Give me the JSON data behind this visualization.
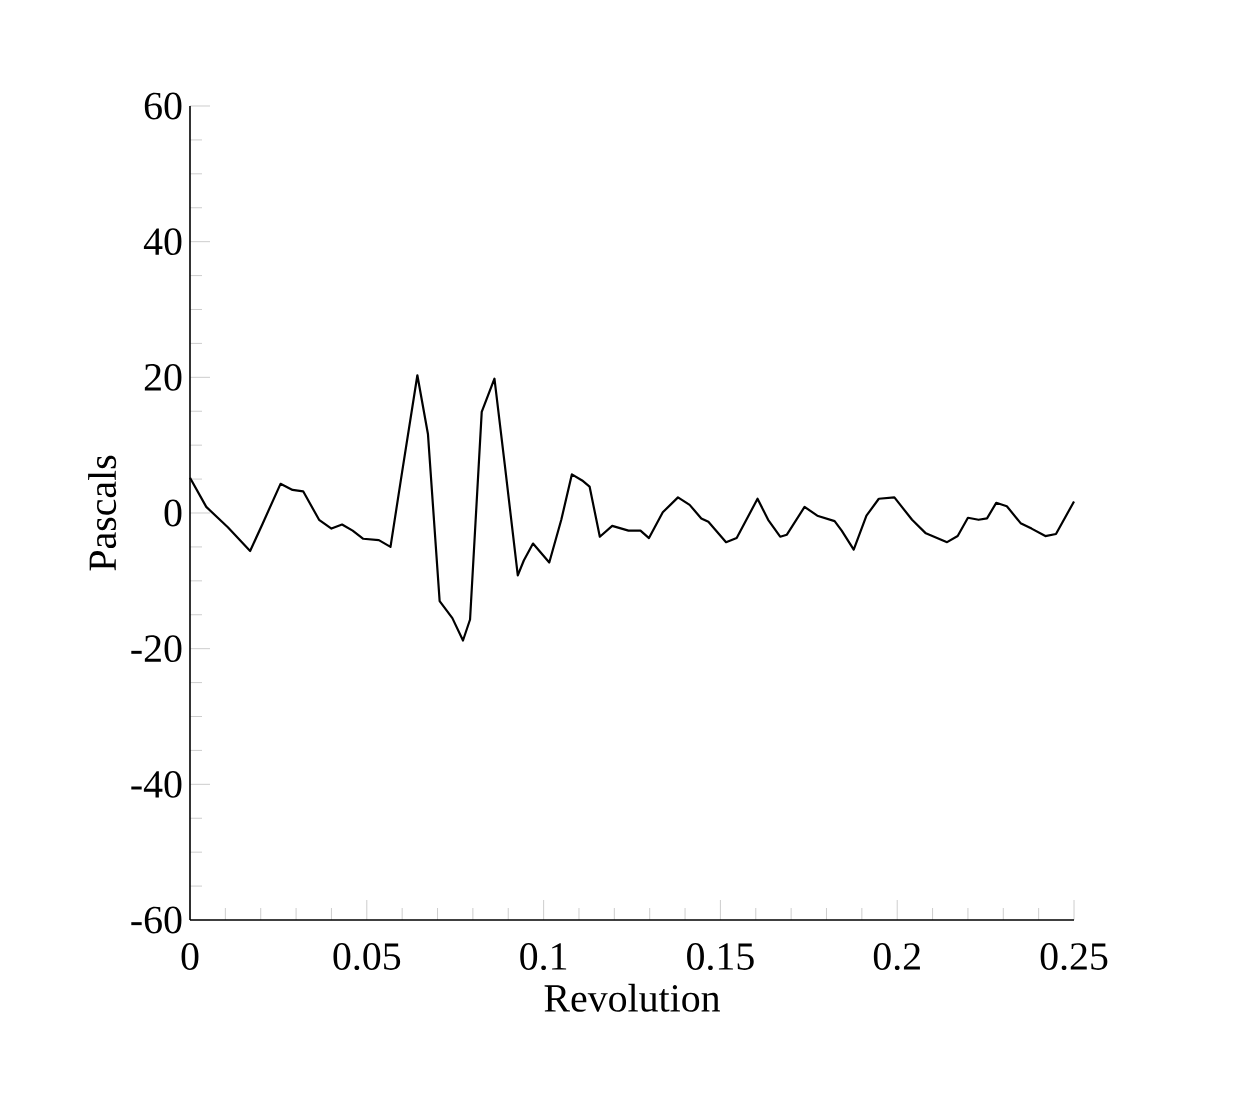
{
  "chart_data": {
    "type": "line",
    "xlabel": "Revolution",
    "ylabel": "Pascals",
    "xlim": [
      0,
      0.25
    ],
    "ylim": [
      -60,
      60
    ],
    "xticks": [
      0,
      0.05,
      0.1,
      0.15,
      0.2,
      0.25
    ],
    "yticks": [
      -60,
      -40,
      -20,
      0,
      20,
      40,
      60
    ],
    "series": [
      {
        "color": "#000000",
        "x": [
          0,
          0.0046,
          0.0107,
          0.017,
          0.0206,
          0.0256,
          0.029,
          0.032,
          0.0365,
          0.04,
          0.043,
          0.046,
          0.049,
          0.0534,
          0.0567,
          0.06,
          0.0643,
          0.0673,
          0.0706,
          0.0742,
          0.0772,
          0.0792,
          0.0825,
          0.0861,
          0.089,
          0.0927,
          0.0944,
          0.097,
          0.1016,
          0.105,
          0.108,
          0.1109,
          0.113,
          0.1159,
          0.1194,
          0.124,
          0.1274,
          0.1298,
          0.1337,
          0.138,
          0.1413,
          0.1446,
          0.1466,
          0.1516,
          0.1546,
          0.1605,
          0.1635,
          0.1669,
          0.1688,
          0.1738,
          0.1774,
          0.1823,
          0.1843,
          0.1877,
          0.1913,
          0.1948,
          0.1992,
          0.2042,
          0.2081,
          0.2141,
          0.2171,
          0.22,
          0.223,
          0.2254,
          0.228,
          0.231,
          0.2349,
          0.238,
          0.2419,
          0.2449,
          0.25
        ],
        "values": [
          5.2,
          0.9,
          -2.1,
          -5.6,
          -1.5,
          4.3,
          3.4,
          3.2,
          -1,
          -2.3,
          -1.7,
          -2.6,
          -3.8,
          -4,
          -5,
          6.1,
          20.3,
          11.6,
          -13,
          -15.5,
          -18.8,
          -15.7,
          14.9,
          19.8,
          7.2,
          -9.2,
          -7,
          -4.5,
          -7.3,
          -1,
          5.7,
          4.8,
          3.9,
          -3.5,
          -1.9,
          -2.6,
          -2.6,
          -3.7,
          0.1,
          2.3,
          1.2,
          -0.8,
          -1.3,
          -4.3,
          -3.7,
          2.1,
          -1,
          -3.5,
          -3.2,
          0.9,
          -0.4,
          -1.2,
          -2.6,
          -5.4,
          -0.4,
          2.1,
          2.3,
          -1,
          -3,
          -4.3,
          -3.4,
          -0.7,
          -1,
          -0.8,
          1.5,
          1.0,
          -1.5,
          -2.3,
          -3.4,
          -3.1,
          1.7
        ]
      }
    ]
  }
}
